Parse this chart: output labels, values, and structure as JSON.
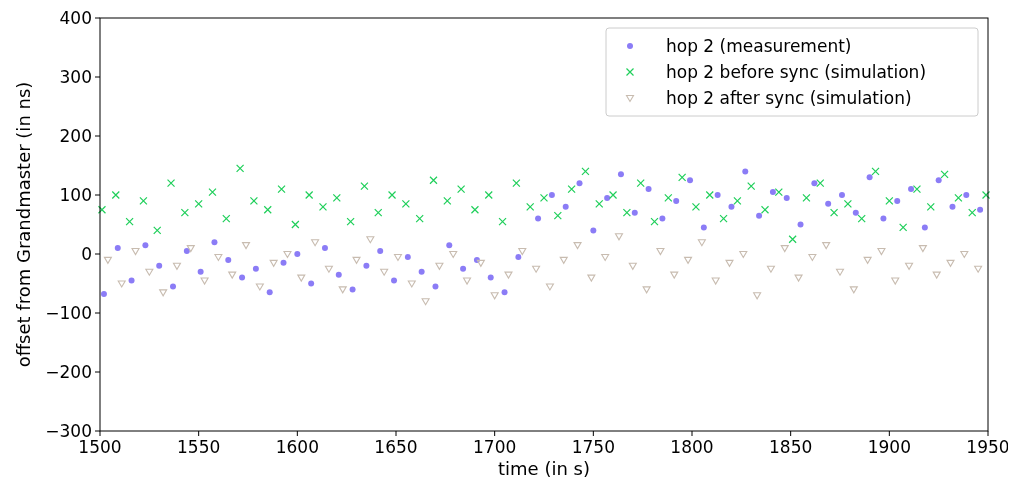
{
  "chart_data": {
    "type": "scatter",
    "xlabel": "time (in s)",
    "ylabel": "offset from Grandmaster (in ns)",
    "xlim": [
      1500,
      1950
    ],
    "xticks": [
      1500,
      1550,
      1600,
      1650,
      1700,
      1750,
      1800,
      1850,
      1900,
      1950
    ],
    "ylim": [
      -300,
      400
    ],
    "yticks": [
      -300,
      -200,
      -100,
      0,
      100,
      200,
      300,
      400
    ],
    "legend": "top right",
    "grid": false,
    "series": [
      {
        "name": "hop 2 (measurement)",
        "color": "#8b7cf6",
        "marker": "circle",
        "x": [
          1502,
          1509,
          1516,
          1523,
          1530,
          1537,
          1544,
          1551,
          1558,
          1565,
          1572,
          1579,
          1586,
          1593,
          1600,
          1607,
          1614,
          1621,
          1628,
          1635,
          1642,
          1649,
          1656,
          1663,
          1670,
          1677,
          1684,
          1691,
          1698,
          1705,
          1712,
          1722,
          1729,
          1736,
          1743,
          1750,
          1757,
          1764,
          1771,
          1778,
          1785,
          1792,
          1799,
          1806,
          1813,
          1820,
          1827,
          1834,
          1841,
          1848,
          1855,
          1862,
          1869,
          1876,
          1883,
          1890,
          1897,
          1904,
          1911,
          1918,
          1925,
          1932,
          1939,
          1946
        ],
        "values": [
          -68,
          10,
          -45,
          15,
          -20,
          -55,
          5,
          -30,
          20,
          -10,
          -40,
          -25,
          -65,
          -15,
          0,
          -50,
          10,
          -35,
          -60,
          -20,
          5,
          -45,
          -5,
          -30,
          -55,
          15,
          -25,
          -10,
          -40,
          -65,
          -5,
          60,
          100,
          80,
          120,
          40,
          95,
          135,
          70,
          110,
          60,
          90,
          125,
          45,
          100,
          80,
          140,
          65,
          105,
          95,
          50,
          120,
          85,
          100,
          70,
          130,
          60,
          90,
          110,
          45,
          125,
          80,
          100,
          75
        ]
      },
      {
        "name": "hop 2 before sync (simulation)",
        "color": "#1fcf5a",
        "marker": "cross",
        "x": [
          1501,
          1508,
          1515,
          1522,
          1529,
          1536,
          1543,
          1550,
          1557,
          1564,
          1571,
          1578,
          1585,
          1592,
          1599,
          1606,
          1613,
          1620,
          1627,
          1634,
          1641,
          1648,
          1655,
          1662,
          1669,
          1676,
          1683,
          1690,
          1697,
          1704,
          1711,
          1718,
          1725,
          1732,
          1739,
          1746,
          1753,
          1760,
          1767,
          1774,
          1781,
          1788,
          1795,
          1802,
          1809,
          1816,
          1823,
          1830,
          1837,
          1844,
          1851,
          1858,
          1865,
          1872,
          1879,
          1886,
          1893,
          1900,
          1907,
          1914,
          1921,
          1928,
          1935,
          1942,
          1949
        ],
        "values": [
          75,
          100,
          55,
          90,
          40,
          120,
          70,
          85,
          105,
          60,
          145,
          90,
          75,
          110,
          50,
          100,
          80,
          95,
          55,
          115,
          70,
          100,
          85,
          60,
          125,
          90,
          110,
          75,
          100,
          55,
          120,
          80,
          95,
          65,
          110,
          140,
          85,
          100,
          70,
          120,
          55,
          95,
          130,
          80,
          100,
          60,
          90,
          115,
          75,
          105,
          25,
          95,
          120,
          70,
          85,
          60,
          140,
          90,
          45,
          110,
          80,
          135,
          95,
          70,
          100
        ]
      },
      {
        "name": "hop 2 after sync (simulation)",
        "color": "#c8bcb0",
        "marker": "triangle",
        "x": [
          1504,
          1511,
          1518,
          1525,
          1532,
          1539,
          1546,
          1553,
          1560,
          1567,
          1574,
          1581,
          1588,
          1595,
          1602,
          1609,
          1616,
          1623,
          1630,
          1637,
          1644,
          1651,
          1658,
          1665,
          1672,
          1679,
          1686,
          1693,
          1700,
          1707,
          1714,
          1721,
          1728,
          1735,
          1742,
          1749,
          1756,
          1763,
          1770,
          1777,
          1784,
          1791,
          1798,
          1805,
          1812,
          1819,
          1826,
          1833,
          1840,
          1847,
          1854,
          1861,
          1868,
          1875,
          1882,
          1889,
          1896,
          1903,
          1910,
          1917,
          1924,
          1931,
          1938,
          1945
        ],
        "values": [
          -10,
          -50,
          5,
          -30,
          -65,
          -20,
          10,
          -45,
          -5,
          -35,
          15,
          -55,
          -15,
          0,
          -40,
          20,
          -25,
          -60,
          -10,
          25,
          -30,
          -5,
          -50,
          -80,
          -20,
          0,
          -45,
          -15,
          -70,
          -35,
          5,
          -25,
          -55,
          -10,
          15,
          -40,
          -5,
          30,
          -20,
          -60,
          5,
          -35,
          -10,
          20,
          -45,
          -15,
          0,
          -70,
          -25,
          10,
          -40,
          -5,
          15,
          -30,
          -60,
          -10,
          5,
          -45,
          -20,
          10,
          -35,
          -15,
          0,
          -25
        ]
      }
    ]
  }
}
